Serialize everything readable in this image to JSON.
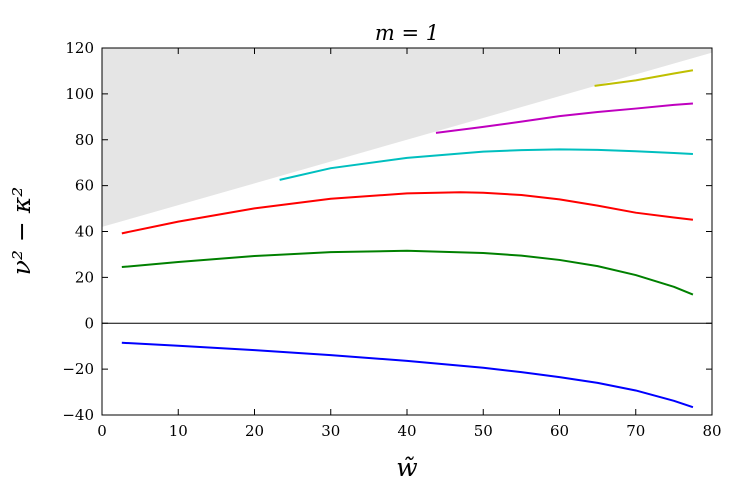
{
  "chart_data": {
    "type": "line",
    "title": "m = 1",
    "xlabel": "w̃",
    "ylabel": "ν² − κ²",
    "xlim": [
      0,
      80
    ],
    "ylim": [
      -40,
      120
    ],
    "xticks": [
      0,
      10,
      20,
      30,
      40,
      50,
      60,
      70,
      80
    ],
    "yticks": [
      -40,
      -20,
      0,
      20,
      40,
      60,
      80,
      100,
      120
    ],
    "xtick_labels": [
      "0",
      "10",
      "20",
      "30",
      "40",
      "50",
      "60",
      "70",
      "80"
    ],
    "ytick_labels": [
      "−40",
      "−20",
      "0",
      "20",
      "40",
      "60",
      "80",
      "100",
      "120"
    ],
    "grid": false,
    "reference_line": {
      "y": 0,
      "color": "#000000"
    },
    "shaded_region": {
      "color": "#e5e5e5",
      "description_free": true,
      "boundary_x": [
        0,
        80
      ],
      "boundary_y": [
        42,
        118
      ],
      "fill_to_y": 120
    },
    "series": [
      {
        "color": "#0000ff",
        "x": [
          2.6,
          10,
          20,
          30,
          40,
          50,
          55,
          60,
          65,
          70,
          75,
          77.5
        ],
        "y": [
          -8.5,
          -9.8,
          -11.7,
          -13.9,
          -16.4,
          -19.4,
          -21.3,
          -23.5,
          -26.0,
          -29.3,
          -33.8,
          -36.6
        ]
      },
      {
        "color": "#008000",
        "x": [
          2.6,
          10,
          20,
          30,
          40,
          50,
          55,
          60,
          65,
          70,
          75,
          77.5
        ],
        "y": [
          24.5,
          26.7,
          29.3,
          31.0,
          31.6,
          30.6,
          29.5,
          27.6,
          24.9,
          21.0,
          15.9,
          12.5
        ]
      },
      {
        "color": "#ff0000",
        "x": [
          2.6,
          10,
          20,
          30,
          40,
          47,
          50,
          55,
          60,
          65,
          70,
          75,
          77.5
        ],
        "y": [
          39.2,
          44.3,
          50.1,
          54.3,
          56.6,
          57.1,
          56.9,
          55.9,
          54.0,
          51.3,
          48.2,
          46.1,
          45.1
        ]
      },
      {
        "color": "#00bfbf",
        "x": [
          23.3,
          30,
          40,
          50,
          55,
          60,
          65,
          70,
          75,
          77.5
        ],
        "y": [
          62.5,
          67.6,
          72.1,
          74.8,
          75.5,
          75.8,
          75.6,
          75.0,
          74.2,
          73.8
        ]
      },
      {
        "color": "#bf00bf",
        "x": [
          43.8,
          50,
          55,
          60,
          65,
          70,
          75,
          77.5
        ],
        "y": [
          83.0,
          85.6,
          87.9,
          90.3,
          92.1,
          93.6,
          95.2,
          95.8
        ]
      },
      {
        "color": "#bfbf00",
        "x": [
          64.6,
          70,
          75,
          77.5
        ],
        "y": [
          103.5,
          105.9,
          108.9,
          110.3
        ]
      }
    ]
  }
}
